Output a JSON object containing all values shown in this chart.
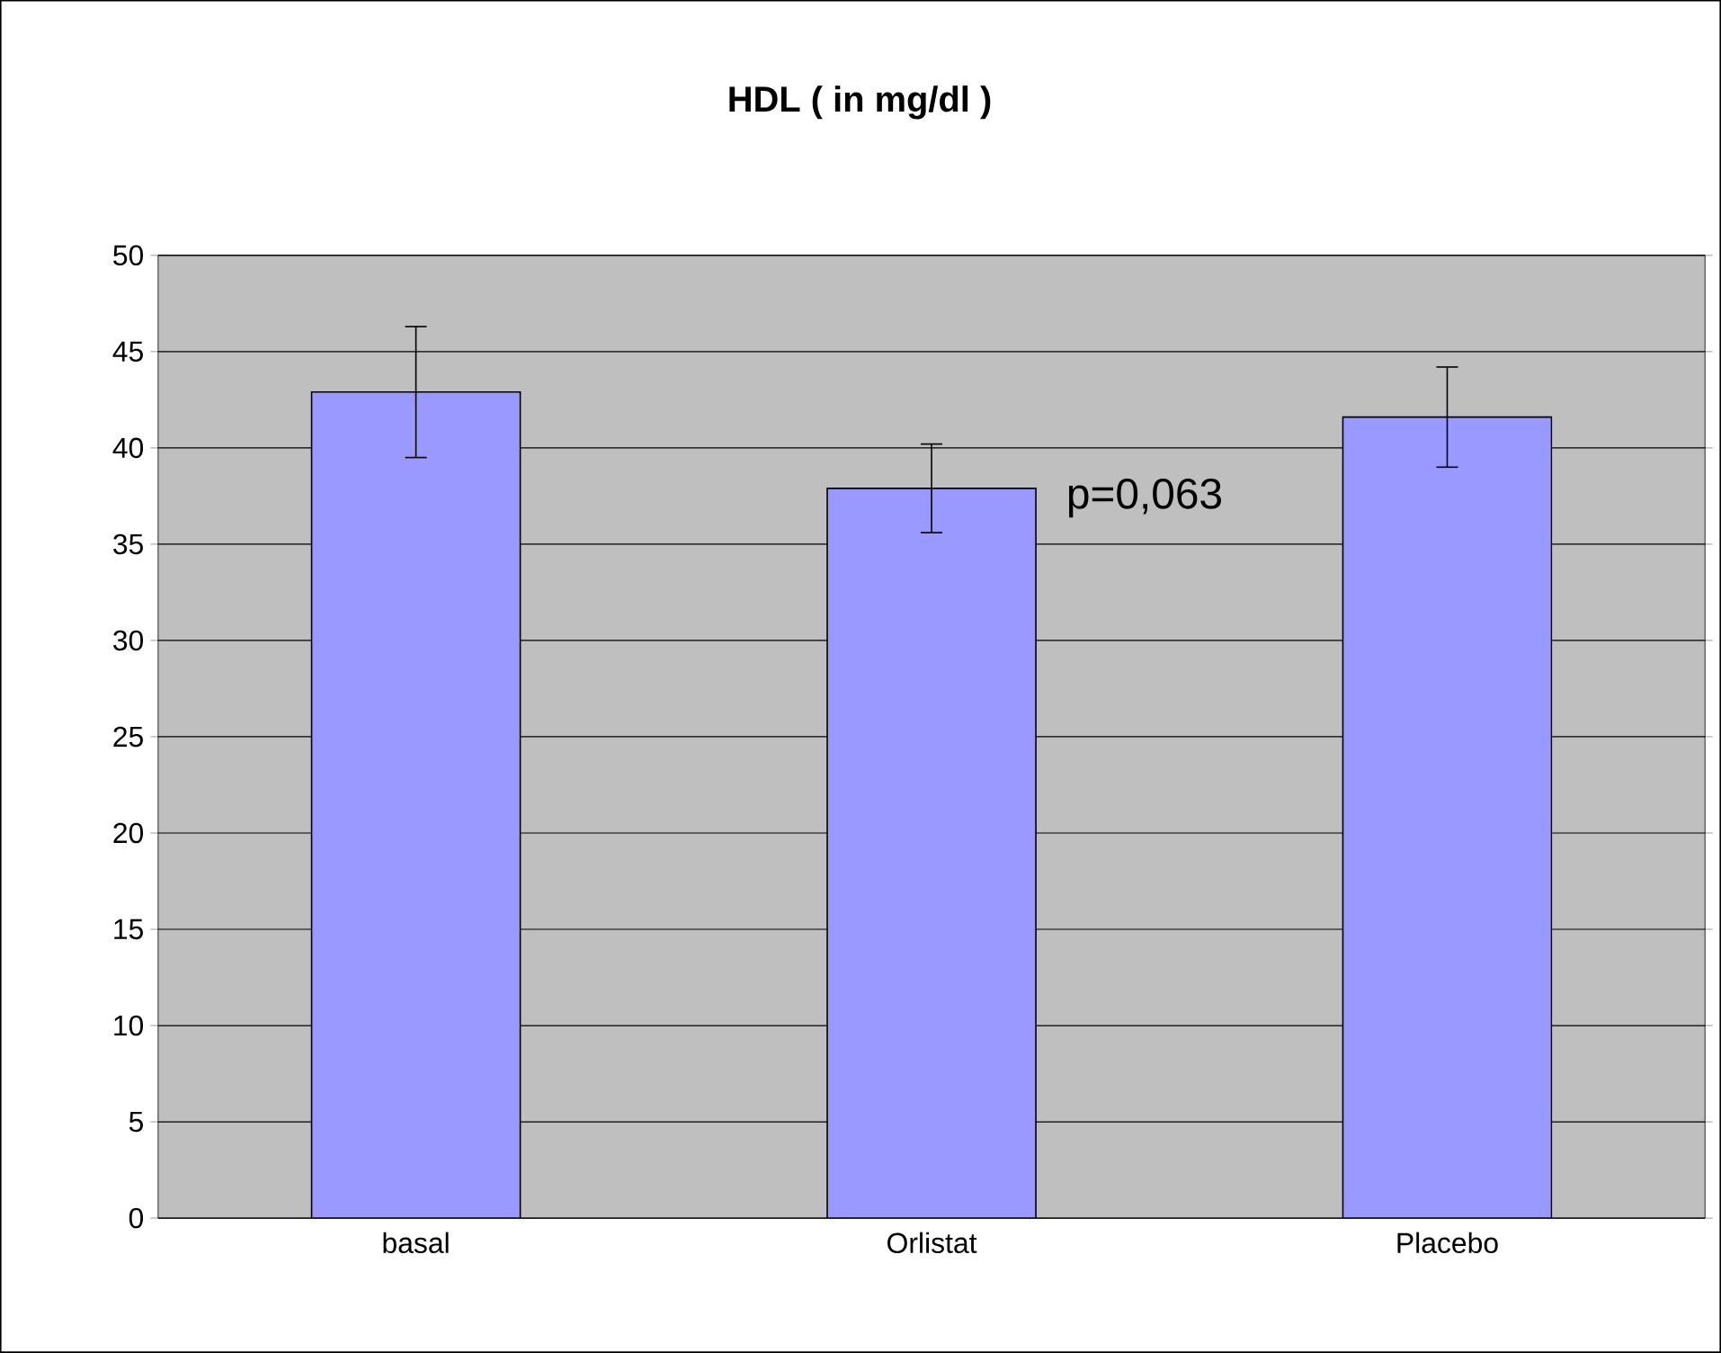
{
  "chart_data": {
    "type": "bar",
    "title": "HDL ( in mg/dl )",
    "categories": [
      "basal",
      "Orlistat",
      "Placebo"
    ],
    "values": [
      42.9,
      37.9,
      41.6
    ],
    "errors": [
      3.4,
      2.3,
      2.6
    ],
    "color": "#9999ff",
    "ylim": [
      0,
      50
    ],
    "yticks": [
      0,
      5,
      10,
      15,
      20,
      25,
      30,
      35,
      40,
      45,
      50
    ],
    "grid": "y",
    "annotations": [
      "p=0,063"
    ]
  }
}
